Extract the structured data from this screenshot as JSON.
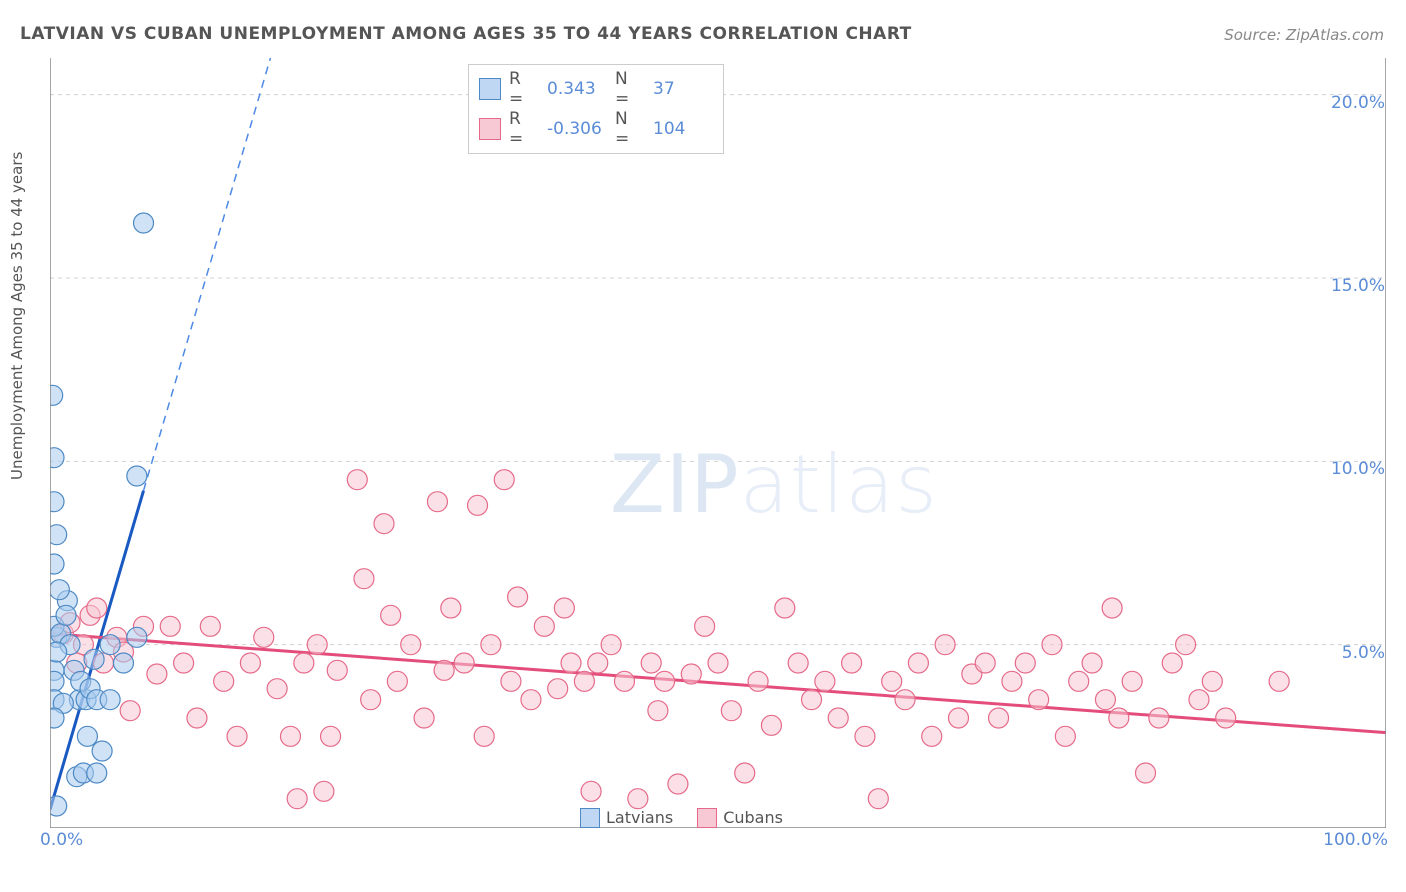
{
  "title": "LATVIAN VS CUBAN UNEMPLOYMENT AMONG AGES 35 TO 44 YEARS CORRELATION CHART",
  "source": "Source: ZipAtlas.com",
  "ylabel": "Unemployment Among Ages 35 to 44 years",
  "watermark": {
    "bold": "ZIP",
    "light": "atlas"
  },
  "chart": {
    "type": "scatter+regression",
    "xlim": [
      0,
      100
    ],
    "ylim": [
      0,
      21
    ],
    "background_color": "#ffffff",
    "grid_color": "#d0d0d0",
    "axis_color": "#888888",
    "point_radius": 10,
    "ytick_labels": [
      "5.0%",
      "10.0%",
      "15.0%",
      "20.0%"
    ],
    "ytick_values": [
      5,
      10,
      15,
      20
    ],
    "xtick_labels": [
      "0.0%",
      "100.0%"
    ],
    "xtick_values": [
      0,
      100
    ],
    "series": {
      "latvians": {
        "label": "Latvians",
        "color_fill": "#a9ccee",
        "color_stroke": "#4d89c4",
        "R": "0.343",
        "N": "37",
        "reg_solid": {
          "x1": 0,
          "y1": 0.5,
          "x2": 7,
          "y2": 9.2
        },
        "reg_dashed": {
          "x1": 7,
          "y1": 9.2,
          "x2": 16.5,
          "y2": 21
        },
        "points": [
          [
            0.5,
            0.6
          ],
          [
            1.3,
            6.2
          ],
          [
            0.2,
            11.8
          ],
          [
            7.0,
            16.5
          ],
          [
            0.3,
            8.9
          ],
          [
            0.3,
            10.1
          ],
          [
            6.5,
            9.6
          ],
          [
            2.2,
            3.5
          ],
          [
            2.7,
            3.5
          ],
          [
            3.3,
            4.6
          ],
          [
            0.3,
            4.3
          ],
          [
            0.5,
            5.2
          ],
          [
            0.3,
            5.5
          ],
          [
            0.8,
            5.3
          ],
          [
            1.2,
            5.8
          ],
          [
            1.5,
            5.0
          ],
          [
            0.3,
            4.0
          ],
          [
            1.8,
            4.3
          ],
          [
            2.3,
            4.0
          ],
          [
            3.0,
            3.8
          ],
          [
            3.5,
            3.5
          ],
          [
            4.5,
            3.5
          ],
          [
            2.0,
            1.4
          ],
          [
            2.5,
            1.5
          ],
          [
            3.5,
            1.5
          ],
          [
            3.9,
            2.1
          ],
          [
            2.8,
            2.5
          ],
          [
            4.5,
            5.0
          ],
          [
            5.5,
            4.5
          ],
          [
            6.5,
            5.2
          ],
          [
            0.3,
            3.5
          ],
          [
            1.0,
            3.4
          ],
          [
            0.3,
            3.0
          ],
          [
            0.5,
            4.8
          ],
          [
            0.7,
            6.5
          ],
          [
            0.3,
            7.2
          ],
          [
            0.5,
            8.0
          ]
        ]
      },
      "cubans": {
        "label": "Cubans",
        "color_fill": "#f7c9d4",
        "color_stroke": "#e56a89",
        "R": "-0.306",
        "N": "104",
        "reg_solid": {
          "x1": 0,
          "y1": 5.3,
          "x2": 100,
          "y2": 2.6
        },
        "points": [
          [
            1.0,
            5.3
          ],
          [
            1.5,
            5.6
          ],
          [
            2.0,
            4.5
          ],
          [
            2.5,
            5.0
          ],
          [
            3.0,
            5.8
          ],
          [
            3.5,
            6.0
          ],
          [
            4.0,
            4.5
          ],
          [
            5.0,
            5.2
          ],
          [
            5.5,
            4.8
          ],
          [
            6.0,
            3.2
          ],
          [
            7.0,
            5.5
          ],
          [
            8.0,
            4.2
          ],
          [
            9.0,
            5.5
          ],
          [
            10.0,
            4.5
          ],
          [
            11.0,
            3.0
          ],
          [
            12.0,
            5.5
          ],
          [
            13.0,
            4.0
          ],
          [
            14.0,
            2.5
          ],
          [
            15.0,
            4.5
          ],
          [
            16.0,
            5.2
          ],
          [
            17.0,
            3.8
          ],
          [
            18.0,
            2.5
          ],
          [
            18.5,
            0.8
          ],
          [
            19.0,
            4.5
          ],
          [
            20.0,
            5.0
          ],
          [
            20.5,
            1.0
          ],
          [
            21.0,
            2.5
          ],
          [
            21.5,
            4.3
          ],
          [
            23.0,
            9.5
          ],
          [
            23.5,
            6.8
          ],
          [
            24.0,
            3.5
          ],
          [
            25.0,
            8.3
          ],
          [
            25.5,
            5.8
          ],
          [
            26.0,
            4.0
          ],
          [
            27.0,
            5.0
          ],
          [
            28.0,
            3.0
          ],
          [
            29.0,
            8.9
          ],
          [
            29.5,
            4.3
          ],
          [
            30.0,
            6.0
          ],
          [
            31.0,
            4.5
          ],
          [
            32.0,
            8.8
          ],
          [
            32.5,
            2.5
          ],
          [
            33.0,
            5.0
          ],
          [
            34.0,
            9.5
          ],
          [
            34.5,
            4.0
          ],
          [
            35.0,
            6.3
          ],
          [
            36.0,
            3.5
          ],
          [
            37.0,
            5.5
          ],
          [
            38.0,
            3.8
          ],
          [
            38.5,
            6.0
          ],
          [
            39.0,
            4.5
          ],
          [
            40.0,
            4.0
          ],
          [
            40.5,
            1.0
          ],
          [
            41.0,
            4.5
          ],
          [
            42.0,
            5.0
          ],
          [
            43.0,
            4.0
          ],
          [
            44.0,
            0.8
          ],
          [
            45.0,
            4.5
          ],
          [
            45.5,
            3.2
          ],
          [
            46.0,
            4.0
          ],
          [
            47.0,
            1.2
          ],
          [
            48.0,
            4.2
          ],
          [
            49.0,
            5.5
          ],
          [
            50.0,
            4.5
          ],
          [
            51.0,
            3.2
          ],
          [
            52.0,
            1.5
          ],
          [
            53.0,
            4.0
          ],
          [
            54.0,
            2.8
          ],
          [
            55.0,
            6.0
          ],
          [
            56.0,
            4.5
          ],
          [
            57.0,
            3.5
          ],
          [
            58.0,
            4.0
          ],
          [
            59.0,
            3.0
          ],
          [
            60.0,
            4.5
          ],
          [
            61.0,
            2.5
          ],
          [
            62.0,
            0.8
          ],
          [
            63.0,
            4.0
          ],
          [
            64.0,
            3.5
          ],
          [
            65.0,
            4.5
          ],
          [
            66.0,
            2.5
          ],
          [
            67.0,
            5.0
          ],
          [
            68.0,
            3.0
          ],
          [
            69.0,
            4.2
          ],
          [
            70.0,
            4.5
          ],
          [
            71.0,
            3.0
          ],
          [
            72.0,
            4.0
          ],
          [
            73.0,
            4.5
          ],
          [
            74.0,
            3.5
          ],
          [
            75.0,
            5.0
          ],
          [
            76.0,
            2.5
          ],
          [
            77.0,
            4.0
          ],
          [
            78.0,
            4.5
          ],
          [
            79.0,
            3.5
          ],
          [
            79.5,
            6.0
          ],
          [
            80.0,
            3.0
          ],
          [
            81.0,
            4.0
          ],
          [
            82.0,
            1.5
          ],
          [
            83.0,
            3.0
          ],
          [
            84.0,
            4.5
          ],
          [
            85.0,
            5.0
          ],
          [
            86.0,
            3.5
          ],
          [
            87.0,
            4.0
          ],
          [
            88.0,
            3.0
          ],
          [
            92.0,
            4.0
          ]
        ]
      }
    }
  }
}
